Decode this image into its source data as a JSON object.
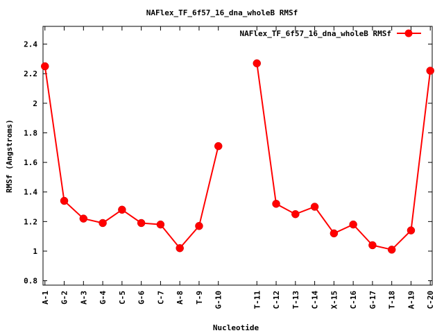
{
  "chart_data": {
    "type": "line",
    "title": "NAFlex_TF_6f57_16_dna_wholeB RMSf",
    "xlabel": "Nucleotide",
    "ylabel": "RMSf (Angstroms)",
    "ylim": [
      0.77,
      2.52
    ],
    "yticks": [
      "0.8",
      "1",
      "1.2",
      "1.4",
      "1.6",
      "1.8",
      "2",
      "2.2",
      "2.4"
    ],
    "grid": false,
    "legend_position": "top-right",
    "series": [
      {
        "name": "NAFlex_TF_6f57_16_dna_wholeB RMSf",
        "color": "#ff0000",
        "segments": [
          {
            "x": [
              1,
              2,
              3,
              4,
              5,
              6,
              7,
              8,
              9,
              10
            ],
            "labels": [
              "A-1",
              "G-2",
              "A-3",
              "G-4",
              "C-5",
              "G-6",
              "C-7",
              "A-8",
              "T-9",
              "G-10"
            ],
            "values": [
              2.25,
              1.34,
              1.22,
              1.19,
              1.28,
              1.19,
              1.18,
              1.02,
              1.17,
              1.71
            ]
          },
          {
            "x": [
              12,
              13,
              14,
              15,
              16,
              17,
              18,
              19,
              20,
              21
            ],
            "labels": [
              "T-11",
              "C-12",
              "T-13",
              "C-14",
              "X-15",
              "C-16",
              "G-17",
              "T-18",
              "A-19",
              "C-20"
            ],
            "values": [
              2.27,
              1.32,
              1.25,
              1.3,
              1.12,
              1.18,
              1.04,
              1.01,
              1.14,
              2.22
            ]
          }
        ]
      }
    ],
    "xlim": [
      0.9,
      21.1
    ]
  }
}
